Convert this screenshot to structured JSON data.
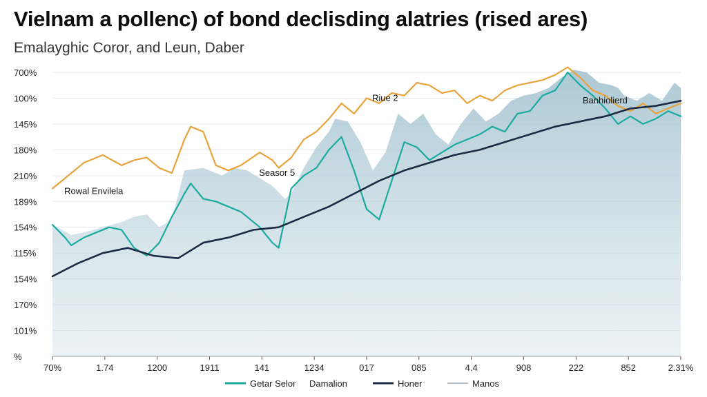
{
  "title": "Vielnam a pollenc) of bond declisding alatries (rised ares)",
  "subtitle": "Emalayghic Coror, and Leun, Daber",
  "colors": {
    "orange": "#e8a33c",
    "teal": "#1aaa9e",
    "navy": "#1d2a44",
    "band": "#b6ced8"
  },
  "chart_data": {
    "type": "line",
    "title": "Vielnam a pollenc) of bond declisding alatries (rised ares)",
    "subtitle": "Emalayghic Coror, and Leun, Daber",
    "x_tick_labels": [
      "70%",
      "1.74",
      "1200",
      "1911",
      "141",
      "1234",
      "017",
      "085",
      "4.4",
      "908",
      "222",
      "852",
      "2.31%"
    ],
    "y_tick_labels": [
      "700%",
      "100%",
      "145%",
      "180%",
      "210%",
      "189%",
      "154%",
      "115%",
      "154%",
      "170%",
      "101%",
      "%"
    ],
    "xlim": [
      0,
      100
    ],
    "ylim": [
      0,
      11
    ],
    "grid": true,
    "legend": {
      "placement": "bottom-center",
      "entries": [
        {
          "name": "Getar Selor",
          "color": "#1aaa9e"
        },
        {
          "name": "Damalion",
          "color": "none"
        },
        {
          "name": "Honer",
          "color": "#1d2a44"
        },
        {
          "name": "Manos",
          "color": "#9aa3ad"
        }
      ]
    },
    "annotations": [
      {
        "text": "Rowal Envilela",
        "x": 1,
        "y": 6.4
      },
      {
        "text": "Seasor 5",
        "x": 32,
        "y": 7.1
      },
      {
        "text": "Riue 2",
        "x": 50,
        "y": 10.0
      },
      {
        "text": "Banhiolierd",
        "x": 83.5,
        "y": 9.9
      }
    ],
    "series": [
      {
        "name": "Manos",
        "style": "area",
        "color": "#b6ced8",
        "x": [
          0,
          3,
          5,
          8,
          11,
          13,
          15,
          17,
          19,
          21,
          24,
          27,
          29,
          31,
          33,
          35,
          37,
          38,
          40,
          42,
          44,
          45,
          47,
          49,
          51,
          53,
          55,
          57,
          59,
          61,
          63,
          65,
          67,
          69,
          71,
          73,
          75,
          77,
          79,
          81,
          83,
          85,
          87,
          89,
          90,
          91,
          93,
          95,
          97,
          99,
          100
        ],
        "y": [
          5.1,
          4.7,
          4.8,
          5.0,
          5.2,
          5.4,
          5.5,
          5.0,
          5.3,
          7.2,
          7.3,
          7.0,
          7.3,
          7.2,
          6.9,
          6.6,
          6.1,
          6.3,
          7.3,
          8.1,
          8.7,
          9.2,
          9.1,
          8.3,
          7.2,
          7.9,
          9.4,
          9.0,
          9.4,
          8.6,
          8.2,
          9.0,
          9.6,
          9.1,
          9.4,
          9.9,
          10.1,
          10.2,
          10.4,
          10.8,
          11.1,
          11.0,
          10.6,
          10.5,
          10.4,
          10.1,
          9.9,
          10.2,
          9.9,
          10.6,
          10.4
        ]
      },
      {
        "name": "Damalion",
        "style": "line",
        "color": "#e8a33c",
        "x": [
          0,
          3,
          5,
          8,
          11,
          13,
          15,
          17,
          19,
          21,
          22,
          24,
          26,
          28,
          30,
          33,
          35,
          36,
          38,
          40,
          42,
          44,
          46,
          48,
          50,
          52,
          54,
          56,
          58,
          60,
          62,
          64,
          66,
          68,
          70,
          72,
          74,
          76,
          78,
          80,
          82,
          84,
          86,
          88,
          90,
          92,
          94,
          96,
          98,
          100
        ],
        "y": [
          6.5,
          7.1,
          7.5,
          7.8,
          7.4,
          7.6,
          7.7,
          7.3,
          7.1,
          8.4,
          8.9,
          8.7,
          7.4,
          7.2,
          7.4,
          7.9,
          7.6,
          7.3,
          7.7,
          8.4,
          8.7,
          9.2,
          9.8,
          9.4,
          10.0,
          9.8,
          10.2,
          10.1,
          10.6,
          10.5,
          10.2,
          10.3,
          9.8,
          10.1,
          9.9,
          10.3,
          10.5,
          10.6,
          10.7,
          10.9,
          11.2,
          10.8,
          10.3,
          10.1,
          9.7,
          9.5,
          9.8,
          9.4,
          9.6,
          9.8
        ]
      },
      {
        "name": "Getar Selor",
        "style": "line",
        "color": "#1aaa9e",
        "x": [
          0,
          2,
          3,
          5,
          7,
          9,
          11,
          13,
          15,
          17,
          19,
          21,
          22,
          24,
          26,
          28,
          30,
          33,
          35,
          36,
          38,
          40,
          42,
          44,
          46,
          48,
          50,
          52,
          54,
          56,
          58,
          60,
          62,
          64,
          66,
          68,
          70,
          72,
          74,
          76,
          78,
          80,
          82,
          84,
          86,
          88,
          90,
          92,
          94,
          96,
          98,
          100
        ],
        "y": [
          5.1,
          4.6,
          4.3,
          4.6,
          4.8,
          5.0,
          4.9,
          4.2,
          3.9,
          4.4,
          5.4,
          6.3,
          6.7,
          6.1,
          6.0,
          5.8,
          5.6,
          5.0,
          4.4,
          4.2,
          6.5,
          7.0,
          7.3,
          8.0,
          8.5,
          7.2,
          5.7,
          5.3,
          6.8,
          8.3,
          8.1,
          7.6,
          7.9,
          8.2,
          8.4,
          8.6,
          8.9,
          8.7,
          9.4,
          9.5,
          10.1,
          10.3,
          11.0,
          10.5,
          10.1,
          9.6,
          9.0,
          9.3,
          9.0,
          9.2,
          9.5,
          9.3
        ]
      },
      {
        "name": "Honer",
        "style": "line",
        "color": "#1d2a44",
        "x": [
          0,
          4,
          8,
          12,
          16,
          20,
          24,
          28,
          32,
          36,
          40,
          44,
          48,
          52,
          56,
          60,
          64,
          68,
          72,
          76,
          80,
          84,
          88,
          92,
          96,
          100
        ],
        "y": [
          3.1,
          3.6,
          4.0,
          4.2,
          3.9,
          3.8,
          4.4,
          4.6,
          4.9,
          5.0,
          5.4,
          5.8,
          6.3,
          6.8,
          7.2,
          7.5,
          7.8,
          8.0,
          8.3,
          8.6,
          8.9,
          9.1,
          9.3,
          9.6,
          9.7,
          9.9
        ]
      }
    ]
  }
}
